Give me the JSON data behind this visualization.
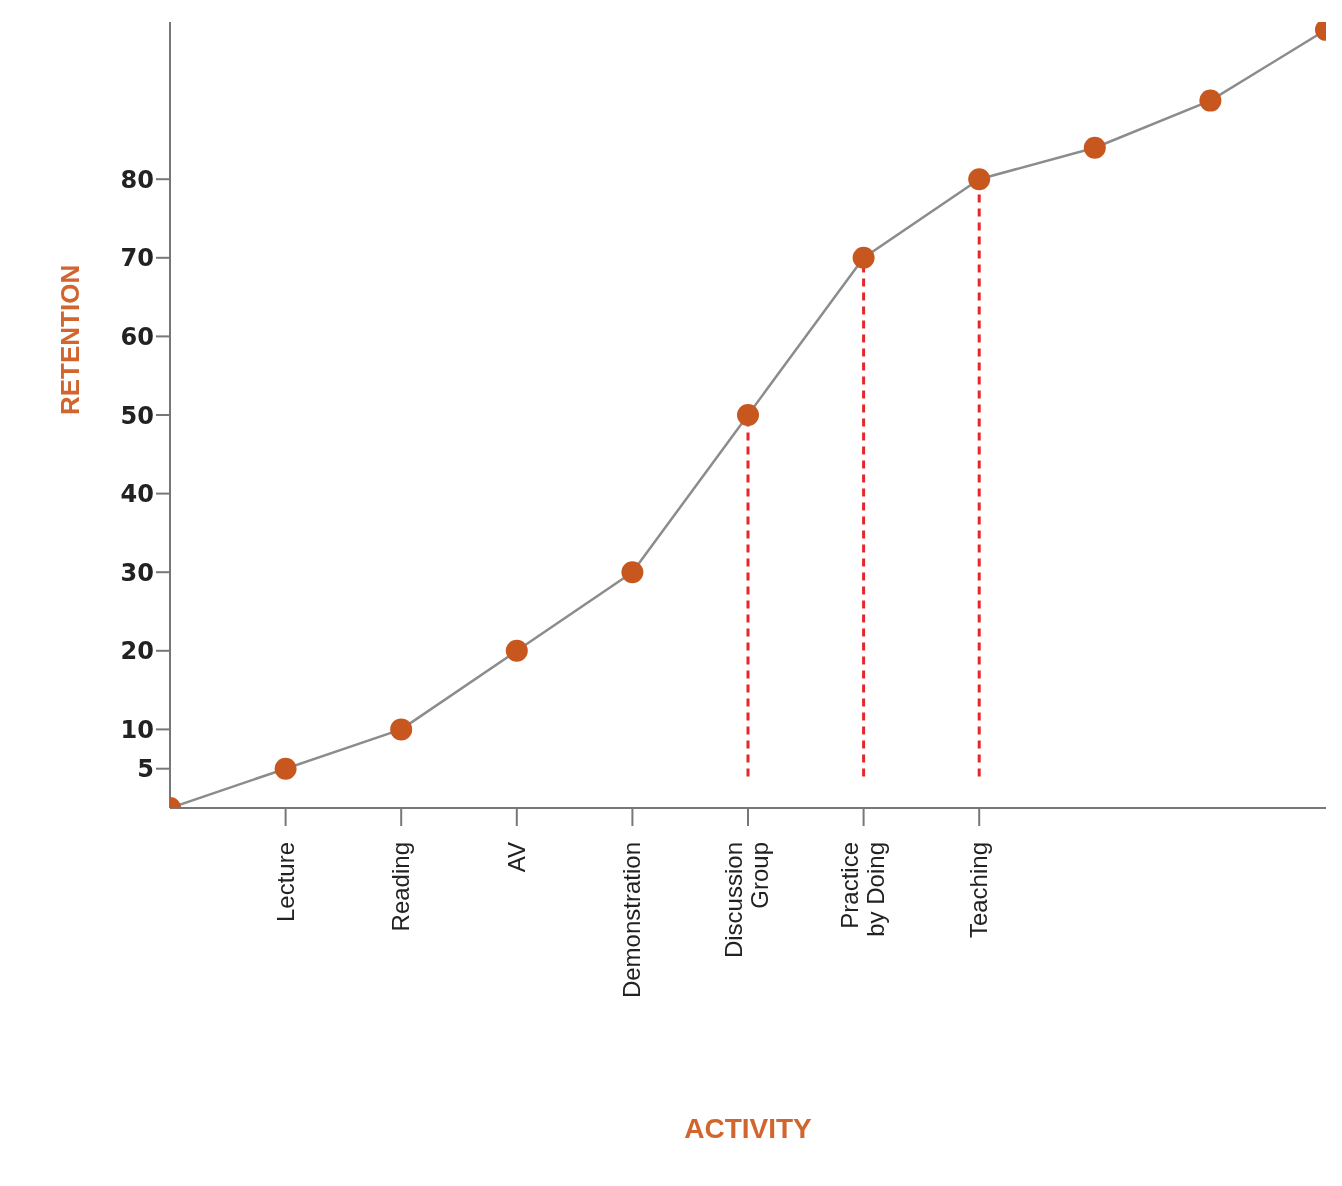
{
  "chart_data": {
    "type": "line",
    "xlabel": "ACTIVITY",
    "ylabel": "RETENTION",
    "categories": [
      null,
      "Lecture",
      "Reading",
      "AV",
      "Demonstration",
      "Discussion Group",
      "Practice by Doing",
      "Teaching",
      null,
      null,
      null
    ],
    "series": [
      {
        "color": "#c8561f",
        "values": [
          0,
          5,
          10,
          20,
          30,
          50,
          70,
          80,
          84,
          90,
          99
        ]
      }
    ],
    "marker": "circle",
    "line_style": "solid",
    "ylim": [
      0,
      100
    ],
    "yticks": [
      5,
      10,
      20,
      30,
      40,
      50,
      60,
      70,
      80
    ],
    "ref_lines": [
      {
        "axis": "x",
        "value": "Discussion Group",
        "color": "#e8262a",
        "line_style": "dashed"
      },
      {
        "axis": "x",
        "value": "Practice by Doing",
        "color": "#e8262a",
        "line_style": "dashed"
      },
      {
        "axis": "x",
        "value": "Teaching",
        "color": "#e8262a",
        "line_style": "dashed"
      }
    ],
    "grid": false,
    "legend": false
  }
}
